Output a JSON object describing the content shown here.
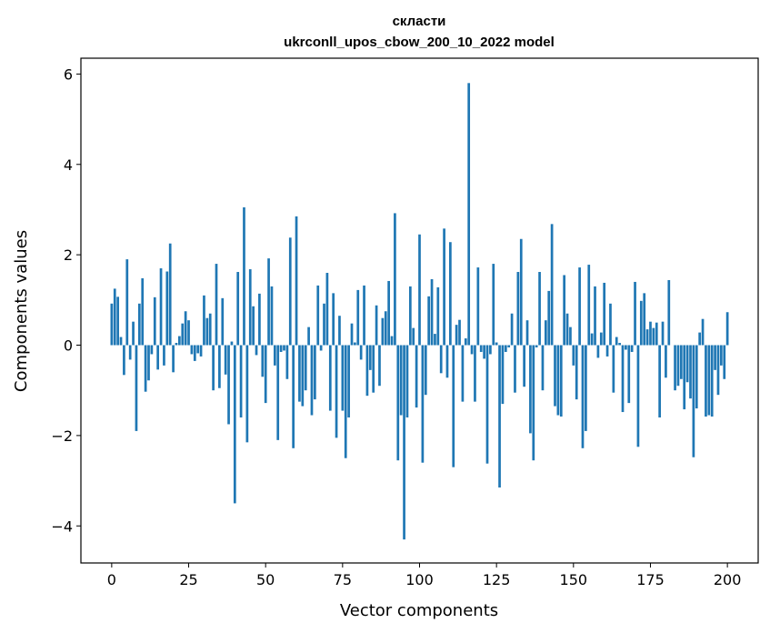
{
  "chart_data": {
    "type": "bar",
    "title": "скласти",
    "subtitle": "ukrconll_upos_cbow_200_10_2022 model",
    "xlabel": "Vector components",
    "ylabel": "Components values",
    "xlim": [
      -10,
      210
    ],
    "ylim": [
      -4.82,
      6.35
    ],
    "xticks": [
      0,
      25,
      50,
      75,
      100,
      125,
      150,
      175,
      200
    ],
    "yticks": [
      -4,
      -2,
      0,
      2,
      4,
      6
    ],
    "xtick_labels": [
      "0",
      "25",
      "50",
      "75",
      "100",
      "125",
      "150",
      "175",
      "200"
    ],
    "ytick_labels": [
      "−4",
      "−2",
      "0",
      "2",
      "4",
      "6"
    ],
    "bar_color": "#1f77b4",
    "grid": false,
    "values": [
      0.92,
      1.25,
      1.07,
      0.18,
      -0.66,
      1.9,
      -0.32,
      0.52,
      -1.9,
      0.92,
      1.48,
      -1.03,
      -0.78,
      -0.2,
      1.06,
      -0.54,
      1.7,
      -0.45,
      1.63,
      2.25,
      -0.6,
      0.05,
      0.2,
      0.48,
      0.75,
      0.55,
      -0.2,
      -0.35,
      -0.18,
      -0.25,
      1.1,
      0.6,
      0.7,
      -1.0,
      1.8,
      -0.95,
      1.04,
      -0.65,
      -1.75,
      0.08,
      -3.5,
      1.62,
      -1.6,
      3.05,
      -2.15,
      1.68,
      0.86,
      -0.22,
      1.14,
      -0.7,
      -1.28,
      1.92,
      1.3,
      -0.45,
      -2.1,
      -0.15,
      -0.12,
      -0.75,
      2.38,
      -2.28,
      2.85,
      -1.25,
      -1.35,
      -1.0,
      0.4,
      -1.55,
      -1.2,
      1.32,
      -0.12,
      0.92,
      1.6,
      -1.45,
      1.15,
      -2.05,
      0.65,
      -1.45,
      -2.5,
      -1.6,
      0.48,
      0.06,
      1.22,
      -0.32,
      1.32,
      -1.12,
      -0.55,
      -1.05,
      0.88,
      -0.9,
      0.6,
      0.75,
      1.42,
      0.2,
      2.92,
      -2.55,
      -1.55,
      -4.3,
      -1.6,
      1.3,
      0.38,
      -1.38,
      2.45,
      -2.6,
      -1.1,
      1.08,
      1.46,
      0.25,
      1.28,
      -0.62,
      2.58,
      -0.72,
      2.28,
      -2.7,
      0.45,
      0.56,
      -1.25,
      0.15,
      5.8,
      -0.2,
      -1.25,
      1.72,
      -0.15,
      -0.3,
      -2.62,
      -0.2,
      1.8,
      0.06,
      -3.15,
      -1.3,
      -0.15,
      -0.05,
      0.7,
      -1.05,
      1.62,
      2.35,
      -0.92,
      0.55,
      -1.95,
      -2.55,
      -0.05,
      1.62,
      -1.0,
      0.55,
      1.2,
      2.68,
      -1.35,
      -1.55,
      -1.58,
      1.55,
      0.7,
      0.4,
      -0.45,
      -1.2,
      1.72,
      -2.28,
      -1.9,
      1.78,
      0.26,
      1.3,
      -0.28,
      0.28,
      1.38,
      -0.25,
      0.92,
      -1.05,
      0.18,
      0.05,
      -1.48,
      -0.1,
      -1.28,
      -0.15,
      1.4,
      -2.25,
      0.98,
      1.15,
      0.35,
      0.52,
      0.38,
      0.5,
      -1.6,
      0.52,
      -0.72,
      1.44,
      0.0,
      -1.0,
      -0.9,
      -0.75,
      -1.42,
      -0.82,
      -1.18,
      -2.48,
      -1.4,
      0.28,
      0.58,
      -1.58,
      -1.55,
      -1.58,
      -0.55,
      -1.1,
      -0.45,
      -0.75,
      0.73
    ]
  }
}
